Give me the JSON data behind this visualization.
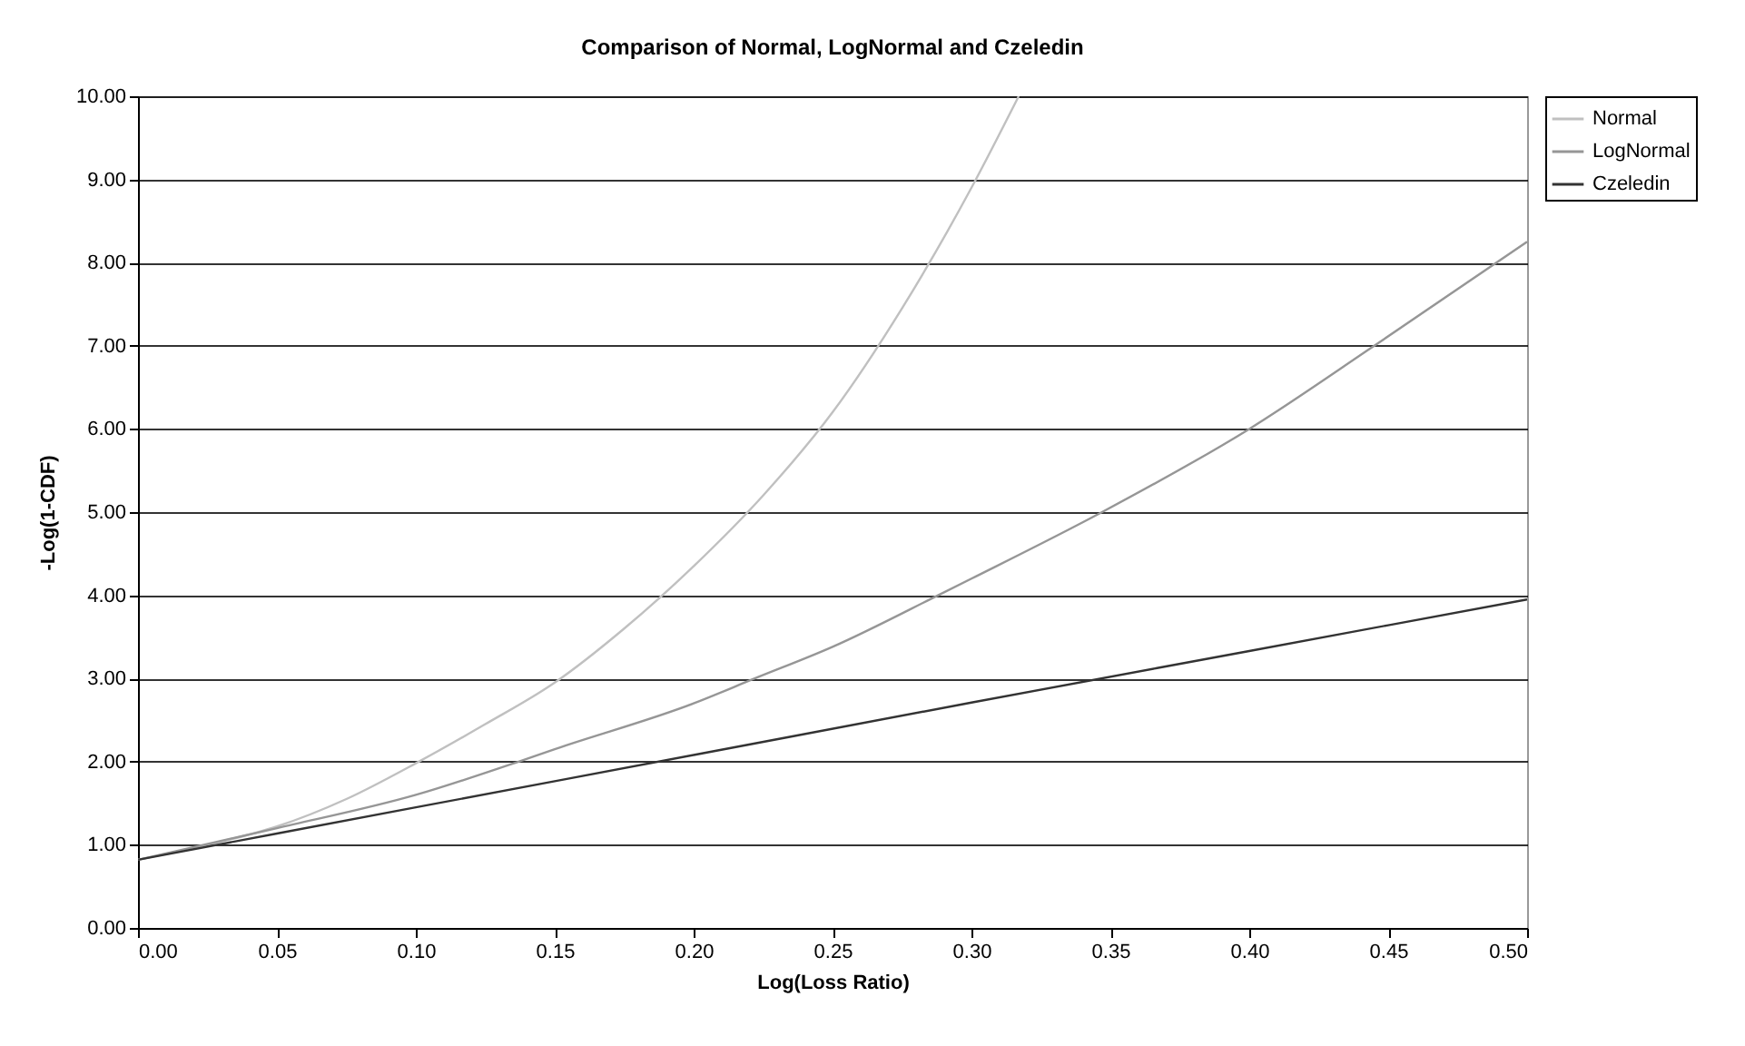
{
  "chart_data": {
    "type": "line",
    "title": "Comparison of Normal, LogNormal and Czeledin",
    "xlabel": "Log(Loss Ratio)",
    "ylabel": "-Log(1-CDF)",
    "series": [
      {
        "name": "Normal",
        "color": "#c0c0c0",
        "x": [
          0,
          0.025,
          0.05,
          0.075,
          0.1,
          0.125,
          0.15,
          0.175,
          0.2,
          0.225,
          0.25,
          0.275,
          0.3,
          0.317
        ],
        "values": [
          0.82,
          1.0,
          1.22,
          1.55,
          1.98,
          2.45,
          2.95,
          3.6,
          4.35,
          5.2,
          6.2,
          7.45,
          8.9,
          10.0
        ]
      },
      {
        "name": "LogNormal",
        "color": "#969696",
        "x": [
          0,
          0.05,
          0.1,
          0.137,
          0.15,
          0.2,
          0.222,
          0.25,
          0.288,
          0.3,
          0.347,
          0.4,
          0.445,
          0.5
        ],
        "values": [
          0.82,
          1.2,
          1.6,
          2.0,
          2.15,
          2.7,
          3.0,
          3.38,
          4.0,
          4.2,
          5.0,
          6.0,
          7.0,
          8.25
        ]
      },
      {
        "name": "Czeledin",
        "color": "#333333",
        "x": [
          0,
          0.1,
          0.2,
          0.3,
          0.4,
          0.5
        ],
        "values": [
          0.82,
          1.45,
          2.08,
          2.71,
          3.33,
          3.95
        ]
      }
    ],
    "xlim": [
      0,
      0.5
    ],
    "ylim": [
      0,
      10
    ],
    "xticks": [
      {
        "value": 0,
        "label": "0.00"
      },
      {
        "value": 0.05,
        "label": "0.05"
      },
      {
        "value": 0.1,
        "label": "0.10"
      },
      {
        "value": 0.15,
        "label": "0.15"
      },
      {
        "value": 0.2,
        "label": "0.20"
      },
      {
        "value": 0.25,
        "label": "0.25"
      },
      {
        "value": 0.3,
        "label": "0.30"
      },
      {
        "value": 0.35,
        "label": "0.35"
      },
      {
        "value": 0.4,
        "label": "0.40"
      },
      {
        "value": 0.45,
        "label": "0.45"
      },
      {
        "value": 0.5,
        "label": "0.50"
      }
    ],
    "yticks": [
      {
        "value": 0,
        "label": "0.00"
      },
      {
        "value": 1,
        "label": "1.00"
      },
      {
        "value": 2,
        "label": "2.00"
      },
      {
        "value": 3,
        "label": "3.00"
      },
      {
        "value": 4,
        "label": "4.00"
      },
      {
        "value": 5,
        "label": "5.00"
      },
      {
        "value": 6,
        "label": "6.00"
      },
      {
        "value": 7,
        "label": "7.00"
      },
      {
        "value": 8,
        "label": "8.00"
      },
      {
        "value": 9,
        "label": "9.00"
      },
      {
        "value": 10,
        "label": "10.00"
      }
    ],
    "grid": "y",
    "legend": "right",
    "marker": "none",
    "line_style": "solid"
  }
}
